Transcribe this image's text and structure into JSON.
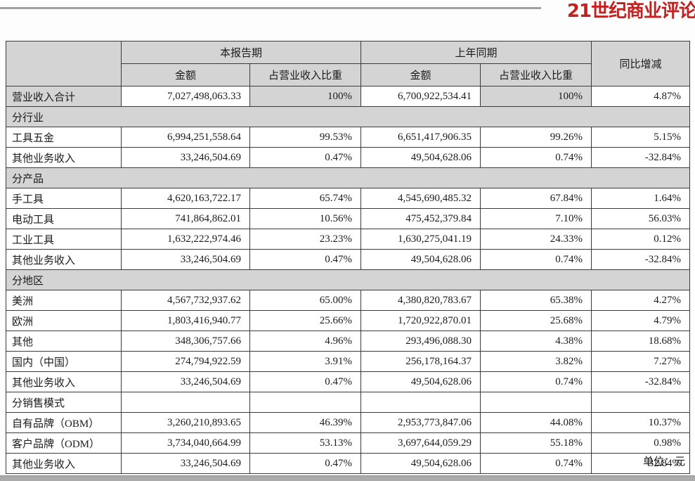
{
  "logo": {
    "text": "21世纪商业评论",
    "color": "#c32120"
  },
  "unit_note": "单位：元",
  "table": {
    "header": {
      "group_current": "本报告期",
      "group_prior": "上年同期",
      "yoy": "同比增减",
      "amount": "金额",
      "proportion": "占营业收入比重"
    },
    "rows": [
      {
        "type": "data",
        "shaded": true,
        "label": "营业收入合计",
        "c_amt": "7,027,498,063.33",
        "c_pct": "100%",
        "p_amt": "6,700,922,534.41",
        "p_pct": "100%",
        "yoy": "4.87%"
      },
      {
        "type": "section",
        "label": "分行业"
      },
      {
        "type": "data",
        "label": "工具五金",
        "c_amt": "6,994,251,558.64",
        "c_pct": "99.53%",
        "p_amt": "6,651,417,906.35",
        "p_pct": "99.26%",
        "yoy": "5.15%"
      },
      {
        "type": "data",
        "label": "其他业务收入",
        "c_amt": "33,246,504.69",
        "c_pct": "0.47%",
        "p_amt": "49,504,628.06",
        "p_pct": "0.74%",
        "yoy": "-32.84%"
      },
      {
        "type": "section",
        "label": "分产品"
      },
      {
        "type": "data",
        "label": "手工具",
        "c_amt": "4,620,163,722.17",
        "c_pct": "65.74%",
        "p_amt": "4,545,690,485.32",
        "p_pct": "67.84%",
        "yoy": "1.64%"
      },
      {
        "type": "data",
        "label": "电动工具",
        "c_amt": "741,864,862.01",
        "c_pct": "10.56%",
        "p_amt": "475,452,379.84",
        "p_pct": "7.10%",
        "yoy": "56.03%"
      },
      {
        "type": "data",
        "label": "工业工具",
        "c_amt": "1,632,222,974.46",
        "c_pct": "23.23%",
        "p_amt": "1,630,275,041.19",
        "p_pct": "24.33%",
        "yoy": "0.12%"
      },
      {
        "type": "data",
        "label": "其他业务收入",
        "c_amt": "33,246,504.69",
        "c_pct": "0.47%",
        "p_amt": "49,504,628.06",
        "p_pct": "0.74%",
        "yoy": "-32.84%"
      },
      {
        "type": "section",
        "label": "分地区"
      },
      {
        "type": "data",
        "label": "美洲",
        "c_amt": "4,567,732,937.62",
        "c_pct": "65.00%",
        "p_amt": "4,380,820,783.67",
        "p_pct": "65.38%",
        "yoy": "4.27%"
      },
      {
        "type": "data",
        "label": "欧洲",
        "c_amt": "1,803,416,940.77",
        "c_pct": "25.66%",
        "p_amt": "1,720,922,870.01",
        "p_pct": "25.68%",
        "yoy": "4.79%"
      },
      {
        "type": "data",
        "label": "其他",
        "c_amt": "348,306,757.66",
        "c_pct": "4.96%",
        "p_amt": "293,496,088.30",
        "p_pct": "4.38%",
        "yoy": "18.68%"
      },
      {
        "type": "data",
        "label": "国内（中国）",
        "c_amt": "274,794,922.59",
        "c_pct": "3.91%",
        "p_amt": "256,178,164.37",
        "p_pct": "3.82%",
        "yoy": "7.27%"
      },
      {
        "type": "data",
        "label": "其他业务收入",
        "c_amt": "33,246,504.69",
        "c_pct": "0.47%",
        "p_amt": "49,504,628.06",
        "p_pct": "0.74%",
        "yoy": "-32.84%"
      },
      {
        "type": "data",
        "label": "分销售模式",
        "c_amt": "",
        "c_pct": "",
        "p_amt": "",
        "p_pct": "",
        "yoy": ""
      },
      {
        "type": "data",
        "label": "自有品牌（OBM）",
        "c_amt": "3,260,210,893.65",
        "c_pct": "46.39%",
        "p_amt": "2,953,773,847.06",
        "p_pct": "44.08%",
        "yoy": "10.37%"
      },
      {
        "type": "data",
        "label": "客户品牌（ODM）",
        "c_amt": "3,734,040,664.99",
        "c_pct": "53.13%",
        "p_amt": "3,697,644,059.29",
        "p_pct": "55.18%",
        "yoy": "0.98%"
      },
      {
        "type": "data",
        "label": "其他业务收入",
        "c_amt": "33,246,504.69",
        "c_pct": "0.47%",
        "p_amt": "49,504,628.06",
        "p_pct": "0.74%",
        "yoy": "-32.84%"
      }
    ]
  }
}
